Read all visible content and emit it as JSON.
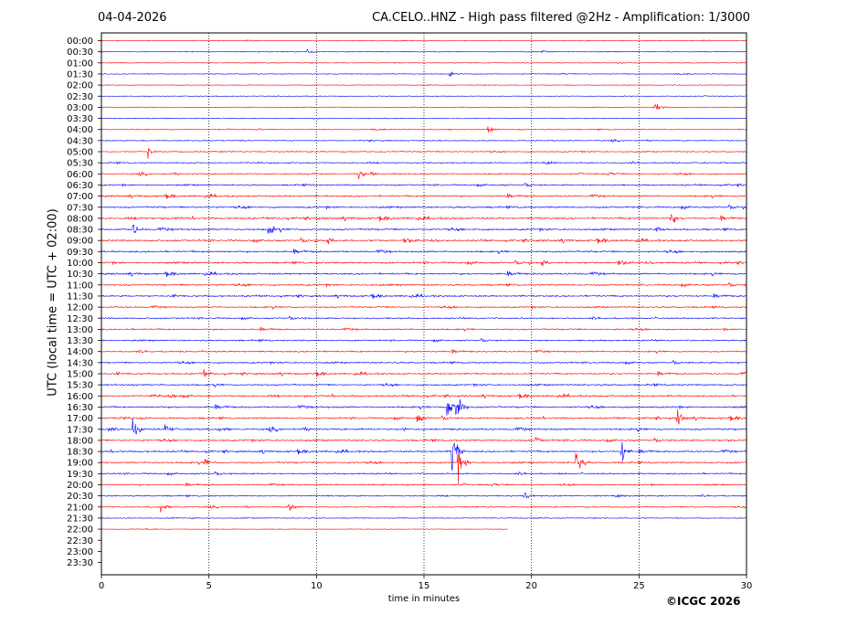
{
  "header": {
    "date": "04-04-2026",
    "title": "CA.CELO..HNZ - High pass filtered @2Hz - Amplification: 1/3000"
  },
  "footer": {
    "copyright": "©ICGC 2026"
  },
  "colors": {
    "odd_trace": "#ff0000",
    "even_trace": "#0000ff",
    "grid": "#000000"
  },
  "chart_data": {
    "type": "line",
    "title": "CA.CELO..HNZ - High pass filtered @2Hz - Amplification: 1/3000",
    "xlabel": "time in minutes",
    "ylabel": "UTC (local time = UTC + 02:00)",
    "xlim": [
      0,
      30
    ],
    "x_ticks": [
      0,
      5,
      10,
      15,
      20,
      25,
      30
    ],
    "x_tick_labels": [
      "0",
      "5",
      "10",
      "15",
      "20",
      "25",
      "30"
    ],
    "grid": "vertical dotted lines at 5-minute intervals",
    "row_labels": [
      "00:00",
      "00:30",
      "01:00",
      "01:30",
      "02:00",
      "02:30",
      "03:00",
      "03:30",
      "04:00",
      "04:30",
      "05:00",
      "05:30",
      "06:00",
      "06:30",
      "07:00",
      "07:30",
      "08:00",
      "08:30",
      "09:00",
      "09:30",
      "10:00",
      "10:30",
      "11:00",
      "11:30",
      "12:00",
      "12:30",
      "13:00",
      "13:30",
      "14:00",
      "14:30",
      "15:00",
      "15:30",
      "16:00",
      "16:30",
      "17:00",
      "17:30",
      "18:00",
      "18:30",
      "19:00",
      "19:30",
      "20:00",
      "20:30",
      "21:00",
      "21:30",
      "22:00",
      "22:30",
      "23:00",
      "23:30"
    ],
    "row_colors": "alternating red / blue per row, starting red at 00:00",
    "trace_end_minutes": [
      30,
      30,
      30,
      30,
      30,
      30,
      30,
      30,
      30,
      30,
      30,
      30,
      30,
      30,
      30,
      30,
      30,
      30,
      30,
      30,
      30,
      30,
      30,
      30,
      30,
      30,
      30,
      30,
      30,
      30,
      30,
      30,
      30,
      30,
      30,
      30,
      30,
      30,
      30,
      30,
      30,
      30,
      30,
      30,
      18.9,
      0,
      0,
      0
    ],
    "activity_level": [
      0.3,
      0.3,
      0.3,
      0.3,
      0.25,
      0.25,
      0.3,
      0.35,
      0.4,
      0.45,
      0.5,
      0.6,
      0.7,
      0.8,
      0.85,
      0.95,
      1.0,
      1.0,
      1.0,
      0.95,
      0.95,
      0.95,
      0.9,
      0.85,
      0.8,
      0.75,
      0.75,
      0.75,
      0.75,
      0.8,
      0.85,
      0.9,
      0.9,
      0.9,
      0.9,
      1.0,
      0.9,
      0.9,
      0.85,
      0.75,
      0.7,
      0.6,
      0.55,
      0.3,
      0.15,
      0,
      0,
      0
    ],
    "events": [
      {
        "row": "00:30",
        "minute": 9.6,
        "amplitude": 0.3
      },
      {
        "row": "00:30",
        "minute": 20.5,
        "amplitude": 0.3
      },
      {
        "row": "01:30",
        "minute": 16.2,
        "amplitude": 0.3
      },
      {
        "row": "03:00",
        "minute": 25.8,
        "amplitude": 0.6
      },
      {
        "row": "04:00",
        "minute": 18.0,
        "amplitude": 0.4
      },
      {
        "row": "05:00",
        "minute": 2.2,
        "amplitude": 0.5
      },
      {
        "row": "06:00",
        "minute": 12.0,
        "amplitude": 0.6
      },
      {
        "row": "08:00",
        "minute": 26.5,
        "amplitude": 0.8
      },
      {
        "row": "08:30",
        "minute": 1.5,
        "amplitude": 0.7
      },
      {
        "row": "08:30",
        "minute": 7.8,
        "amplitude": 0.8
      },
      {
        "row": "15:00",
        "minute": 4.8,
        "amplitude": 0.5
      },
      {
        "row": "16:30",
        "minute": 16.1,
        "amplitude": 2.6
      },
      {
        "row": "16:30",
        "minute": 16.5,
        "amplitude": 3.0
      },
      {
        "row": "17:00",
        "minute": 26.8,
        "amplitude": 0.9
      },
      {
        "row": "17:00",
        "minute": 14.7,
        "amplitude": 0.7
      },
      {
        "row": "17:30",
        "minute": 1.5,
        "amplitude": 0.9
      },
      {
        "row": "17:30",
        "minute": 3.0,
        "amplitude": 0.8
      },
      {
        "row": "18:00",
        "minute": 20.2,
        "amplitude": 0.5
      },
      {
        "row": "18:30",
        "minute": 16.3,
        "amplitude": 4.0
      },
      {
        "row": "18:30",
        "minute": 24.2,
        "amplitude": 1.6
      },
      {
        "row": "19:00",
        "minute": 4.8,
        "amplitude": 0.8
      },
      {
        "row": "19:00",
        "minute": 16.6,
        "amplitude": 2.3
      },
      {
        "row": "19:00",
        "minute": 22.1,
        "amplitude": 2.0
      },
      {
        "row": "20:30",
        "minute": 19.7,
        "amplitude": 0.5
      },
      {
        "row": "21:00",
        "minute": 8.7,
        "amplitude": 1.3
      },
      {
        "row": "21:00",
        "minute": 2.8,
        "amplitude": 0.4
      }
    ]
  }
}
